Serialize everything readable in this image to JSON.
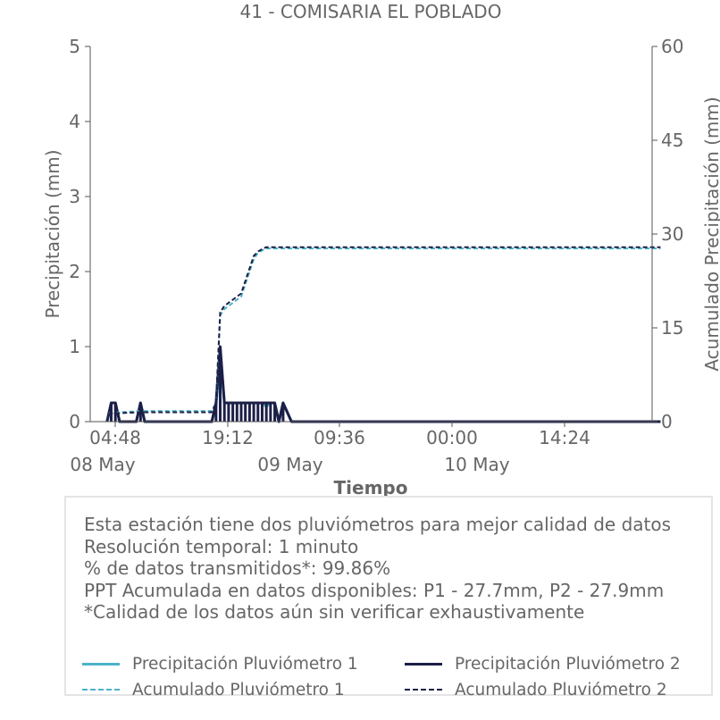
{
  "chart_data": {
    "type": "line",
    "title": "41 - COMISARIA EL POBLADO",
    "xlabel": "Tiempo",
    "ylabel": "Precipitación (mm)",
    "y2label": "Acumulado Precipitación (mm)",
    "ylim": [
      0,
      5
    ],
    "y2lim": [
      0,
      60
    ],
    "yticks": [
      "0",
      "1",
      "2",
      "3",
      "4",
      "5"
    ],
    "y2ticks": [
      "0",
      "15",
      "30",
      "45",
      "60"
    ],
    "xticks": [
      "04:48",
      "19:12",
      "09:36",
      "00:00",
      "14:24"
    ],
    "xdates": [
      "08 May",
      "09 May",
      "10 May"
    ],
    "grid": false,
    "colors": {
      "p1": "#4bb3c7",
      "p2": "#1c1f47"
    },
    "series": [
      {
        "name": "Precipitación Pluviómetro 1",
        "axis": "left",
        "style": "solid",
        "x": [
          "08 May 02:00",
          "08 May 02:30",
          "08 May 03:00",
          "08 May 03:30",
          "08 May 04:00",
          "08 May 04:30",
          "08 May 05:00",
          "08 May 05:30",
          "08 May 06:00",
          "08 May 06:30",
          "08 May 07:00",
          "08 May 12:00",
          "08 May 14:30",
          "08 May 15:00",
          "08 May 15:30",
          "08 May 16:00",
          "08 May 16:30",
          "08 May 17:00",
          "08 May 17:30",
          "08 May 18:00",
          "08 May 18:30",
          "08 May 19:00",
          "08 May 19:30",
          "08 May 20:00",
          "08 May 20:30",
          "08 May 21:00",
          "08 May 21:30",
          "08 May 22:00",
          "08 May 22:30",
          "08 May 23:00",
          "09 May 00:00",
          "10 May 20:00"
        ],
        "y": [
          0,
          0.25,
          0.25,
          0,
          0,
          0,
          0,
          0,
          0.25,
          0,
          0,
          0,
          0,
          0.2,
          0.9,
          0.25,
          0.25,
          0.25,
          0.25,
          0.25,
          0.25,
          0.25,
          0.25,
          0.25,
          0.25,
          0.2,
          0.25,
          0.25,
          0,
          0.25,
          0,
          0
        ]
      },
      {
        "name": "Precipitación Pluviómetro 2",
        "axis": "left",
        "style": "solid",
        "x": [
          "08 May 02:00",
          "08 May 02:30",
          "08 May 03:00",
          "08 May 03:30",
          "08 May 04:00",
          "08 May 04:30",
          "08 May 05:00",
          "08 May 05:30",
          "08 May 06:00",
          "08 May 06:30",
          "08 May 07:00",
          "08 May 12:00",
          "08 May 14:30",
          "08 May 15:00",
          "08 May 15:30",
          "08 May 16:00",
          "08 May 16:30",
          "08 May 17:00",
          "08 May 17:30",
          "08 May 18:00",
          "08 May 18:30",
          "08 May 19:00",
          "08 May 19:30",
          "08 May 20:00",
          "08 May 20:30",
          "08 May 21:00",
          "08 May 21:30",
          "08 May 22:00",
          "08 May 22:30",
          "08 May 23:00",
          "09 May 00:00",
          "10 May 20:00"
        ],
        "y": [
          0,
          0.25,
          0.25,
          0,
          0,
          0,
          0,
          0,
          0.25,
          0,
          0,
          0,
          0,
          0.25,
          1.0,
          0.25,
          0.25,
          0.25,
          0.25,
          0.25,
          0.25,
          0.25,
          0.25,
          0.25,
          0.25,
          0.25,
          0.25,
          0.25,
          0,
          0.25,
          0,
          0
        ]
      },
      {
        "name": "Acumulado Pluviómetro 1",
        "axis": "right",
        "style": "dashed",
        "x": [
          "08 May 02:00",
          "08 May 02:20",
          "08 May 06:00",
          "08 May 14:30",
          "08 May 15:00",
          "08 May 15:30",
          "08 May 16:00",
          "08 May 17:00",
          "08 May 18:00",
          "08 May 18:30",
          "08 May 19:00",
          "08 May 19:30",
          "08 May 20:00",
          "08 May 20:30",
          "08 May 21:00",
          "08 May 22:00",
          "08 May 23:00",
          "09 May 00:00",
          "10 May 20:00"
        ],
        "y": [
          0,
          1.4,
          1.7,
          1.7,
          3,
          17,
          18,
          19,
          20,
          22,
          24,
          26,
          27,
          27.4,
          27.7,
          27.7,
          27.7,
          27.7,
          27.7
        ]
      },
      {
        "name": "Acumulado Pluviómetro 2",
        "axis": "right",
        "style": "dashed",
        "x": [
          "08 May 02:00",
          "08 May 02:20",
          "08 May 06:00",
          "08 May 14:30",
          "08 May 15:00",
          "08 May 15:30",
          "08 May 16:00",
          "08 May 17:00",
          "08 May 18:00",
          "08 May 18:30",
          "08 May 19:00",
          "08 May 19:30",
          "08 May 20:00",
          "08 May 20:30",
          "08 May 21:00",
          "08 May 22:00",
          "08 May 23:00",
          "09 May 00:00",
          "10 May 20:00"
        ],
        "y": [
          0,
          1.3,
          1.5,
          1.5,
          3,
          17.5,
          18.5,
          19.5,
          20.5,
          22.5,
          24.5,
          26.5,
          27.2,
          27.6,
          27.9,
          27.9,
          27.9,
          27.9,
          27.9
        ]
      }
    ]
  },
  "info": {
    "line1": "Esta estación tiene dos pluviómetros para mejor calidad de datos",
    "line2": "Resolución temporal: 1 minuto",
    "line3": "% de datos transmitidos*: 99.86%",
    "line4": "PPT Acumulada en datos disponibles: P1 - 27.7mm, P2 - 27.9mm",
    "line5": "*Calidad de los datos aún sin verificar exhaustivamente"
  },
  "legend": {
    "p1_rain": "Precipitación Pluviómetro 1",
    "p2_rain": "Precipitación Pluviómetro 2",
    "p1_acc": "Acumulado Pluviómetro 1",
    "p2_acc": "Acumulado Pluviómetro 2"
  }
}
